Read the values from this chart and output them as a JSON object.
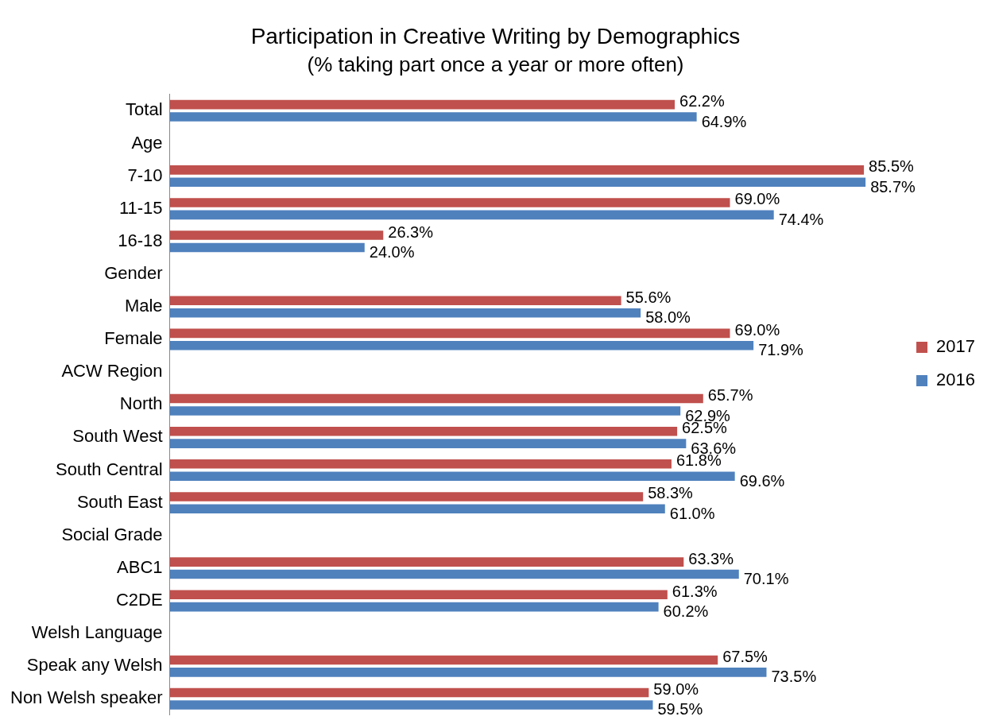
{
  "chart_data": {
    "type": "bar",
    "orientation": "horizontal",
    "title": "Participation in Creative Writing by Demographics",
    "subtitle": "(% taking part once a year or more often)",
    "categories": [
      "Total",
      "Age",
      "7-10",
      "11-15",
      "16-18",
      "Gender",
      "Male",
      "Female",
      "ACW Region",
      "North",
      "South West",
      "South Central",
      "South East",
      "Social Grade",
      "ABC1",
      "C2DE",
      "Welsh Language",
      "Speak any Welsh",
      "Non Welsh speaker"
    ],
    "series": [
      {
        "name": "2017",
        "color": "#c0504d",
        "values": [
          62.2,
          null,
          85.5,
          69.0,
          26.3,
          null,
          55.6,
          69.0,
          null,
          65.7,
          62.5,
          61.8,
          58.3,
          null,
          63.3,
          61.3,
          null,
          67.5,
          59.0
        ],
        "value_labels": [
          "62.2%",
          null,
          "85.5%",
          "69.0%",
          "26.3%",
          null,
          "55.6%",
          "69.0%",
          null,
          "65.7%",
          "62.5%",
          "61.8%",
          "58.3%",
          null,
          "63.3%",
          "61.3%",
          null,
          "67.5%",
          "59.0%"
        ]
      },
      {
        "name": "2016",
        "color": "#4f81bd",
        "values": [
          64.9,
          null,
          85.7,
          74.4,
          24.0,
          null,
          58.0,
          71.9,
          null,
          62.9,
          63.6,
          69.6,
          61.0,
          null,
          70.1,
          60.2,
          null,
          73.5,
          59.5
        ],
        "value_labels": [
          "64.9%",
          null,
          "85.7%",
          "74.4%",
          "24.0%",
          null,
          "58.0%",
          "71.9%",
          null,
          "62.9%",
          "63.6%",
          "69.6%",
          "61.0%",
          null,
          "70.1%",
          "60.2%",
          null,
          "73.5%",
          "59.5%"
        ]
      }
    ],
    "tick_labels": "y",
    "grid": false,
    "legend": "right"
  }
}
